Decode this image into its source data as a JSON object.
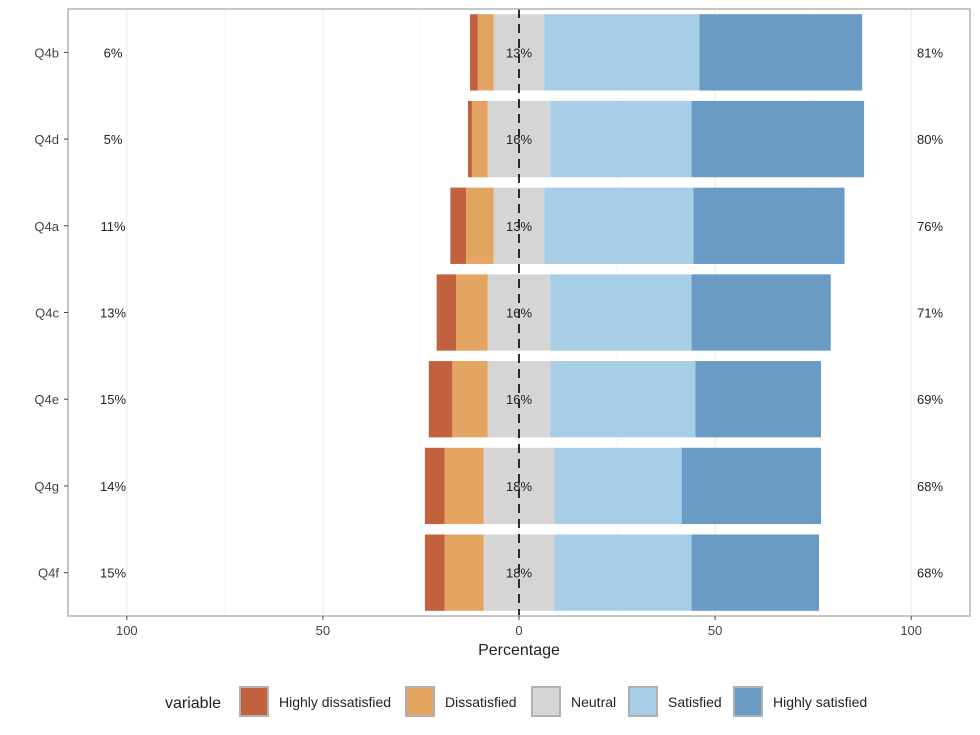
{
  "chart_data": {
    "type": "bar",
    "orientation": "horizontal-diverging",
    "xlabel": "Percentage",
    "xlim": [
      -115,
      115
    ],
    "x_ticks": [
      {
        "value": -100,
        "label": "100"
      },
      {
        "value": -50,
        "label": "50"
      },
      {
        "value": 0,
        "label": "0"
      },
      {
        "value": 50,
        "label": "50"
      },
      {
        "value": 100,
        "label": "100"
      }
    ],
    "categories": [
      "Q4b",
      "Q4d",
      "Q4a",
      "Q4c",
      "Q4e",
      "Q4g",
      "Q4f"
    ],
    "legend_title": "variable",
    "legend_position": "bottom",
    "series": [
      {
        "name": "Highly dissatisfied",
        "color": "#C2613E",
        "values": [
          2,
          1,
          4,
          5,
          6,
          5,
          5
        ]
      },
      {
        "name": "Dissatisfied",
        "color": "#E5A562",
        "values": [
          4,
          4,
          7,
          8,
          9,
          10,
          10
        ]
      },
      {
        "name": "Neutral",
        "color": "#D5D5D5",
        "values": [
          13,
          16,
          13,
          16,
          16,
          18,
          18
        ]
      },
      {
        "name": "Satisfied",
        "color": "#A7CDE7",
        "values": [
          39.5,
          36,
          38,
          36,
          37,
          32.5,
          35
        ]
      },
      {
        "name": "Highly satisfied",
        "color": "#6A9BC4",
        "values": [
          41.5,
          44,
          38.5,
          35.5,
          32,
          35.5,
          32.5
        ]
      }
    ],
    "left_labels": [
      "6%",
      "5%",
      "11%",
      "13%",
      "15%",
      "14%",
      "15%"
    ],
    "center_labels": [
      "13%",
      "16%",
      "13%",
      "16%",
      "16%",
      "18%",
      "18%"
    ],
    "right_labels": [
      "81%",
      "80%",
      "76%",
      "71%",
      "69%",
      "68%",
      "68%"
    ],
    "grid": true
  }
}
